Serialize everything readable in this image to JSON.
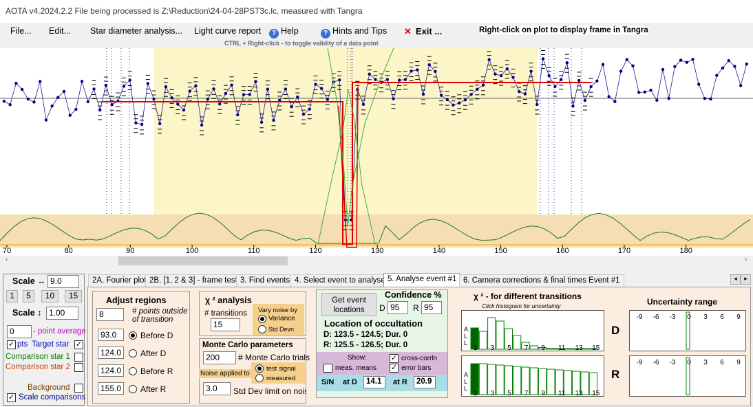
{
  "window": {
    "title": "AOTA v4.2024.2.2    File being processed is Z:\\Reduction\\24-04-28PST3c.lc, measured with Tangra"
  },
  "menu": {
    "file": "File...",
    "edit": "Edit...",
    "star_diameter": "Star diameter analysis...",
    "light_curve": "Light curve report",
    "help": "Help",
    "hints": "Hints and Tips",
    "exit": "Exit ...",
    "right_click_note": "Right-click on plot to display frame in Tangra"
  },
  "plot": {
    "hint": "CTRL + Right-click  -  to toggle validity of a data point",
    "x_ticks": [
      "70",
      "80",
      "90",
      "100",
      "110",
      "120",
      "130",
      "140",
      "150",
      "160",
      "170",
      "180"
    ],
    "colors": {
      "plot_bg": "#ffffff",
      "fit_line": "#e00000",
      "data": "#00008b",
      "chi_line": "#008000",
      "band": "#f5deb3",
      "selection": "#fbf5c8"
    }
  },
  "left_panel": {
    "scale_h_label": "Scale ↔",
    "scale_h_value": "9.0",
    "presets": [
      "1",
      "5",
      "10",
      "15"
    ],
    "scale_v_label": "Scale ↕",
    "scale_v_value": "1.00",
    "point_avg_value": "0",
    "point_avg_label": "- point average",
    "pts_label": "pts",
    "target_label": "Target star",
    "comp1_label": "Comparison star 1",
    "comp2_label": "Comparison star 2",
    "background_label": "Background",
    "scale_comparisons_label": "Scale comparisons"
  },
  "tabs": [
    "2A. Fourier plot",
    "2B. [1, 2 & 3] - frame test",
    "3. Find events",
    "4. Select event to analyse",
    "5. Analyse event #1",
    "6. Camera corrections & final times Event #1"
  ],
  "adjust": {
    "title": "Adjust regions",
    "points_value": "8",
    "points_label": "# points outside of transition",
    "rows": [
      {
        "value": "93.0",
        "label": "Before D"
      },
      {
        "value": "124.0",
        "label": "After D"
      },
      {
        "value": "124.0",
        "label": "Before R"
      },
      {
        "value": "155.0",
        "label": "After R"
      }
    ]
  },
  "chi2": {
    "title": "χ ² analysis",
    "transitions_label": "# transitions",
    "transitions_value": "15",
    "vary_label": "Vary noise by",
    "variance": "Variance",
    "std_devn": "Std Devn"
  },
  "monte": {
    "title": "Monte Carlo parameters",
    "trials_value": "200",
    "trials_label": "# Monte Carlo trials",
    "noise_label": "Noise applied to",
    "test_signal": "test signal",
    "measured": "measured",
    "sd_value": "3.0",
    "sd_label": "Std Dev limit on noise"
  },
  "event": {
    "get_button": "Get event locations",
    "confidence": "Confidence %",
    "d_label": "D",
    "d_value": "95",
    "r_label": "R",
    "r_value": "95",
    "location_title": "Location of occultation",
    "d_line": "D: 123.5 - 124.5; Dur. 0",
    "r_line": "R: 125.5 - 126.5; Dur. 0",
    "show": "Show:",
    "meas_means": "meas. means",
    "cross_corr": "cross-corrln",
    "error_bars": "error bars",
    "sn": "S/N",
    "at_d": "at D",
    "sn_d": "14.1",
    "at_r": "at R",
    "sn_r": "20.9"
  },
  "hist": {
    "title": "χ ² - for different transitions",
    "subtitle": "Click histogram for uncertainty",
    "axis_labels": [
      "1",
      "3",
      "5",
      "7",
      "9",
      "11",
      "13",
      "15"
    ],
    "all_label": "A\nL\nL",
    "d_heights": [
      0.62,
      0.52,
      0.92,
      0.82,
      0.6,
      0.4,
      0.2,
      0.1,
      0.05,
      0.03,
      0.02,
      0.02,
      0.02,
      0.02,
      0.02
    ],
    "r_heights": [
      0.9,
      0.9,
      0.88,
      0.86,
      0.84,
      0.82,
      0.8,
      0.78,
      0.76,
      0.74,
      0.72,
      0.7,
      0.68,
      0.66,
      0.64
    ]
  },
  "uncert": {
    "title": "Uncertainty range",
    "ticks": [
      "-9",
      "-6",
      "-3",
      "0",
      "3",
      "6",
      "9"
    ],
    "d_label": "D",
    "r_label": "R"
  }
}
